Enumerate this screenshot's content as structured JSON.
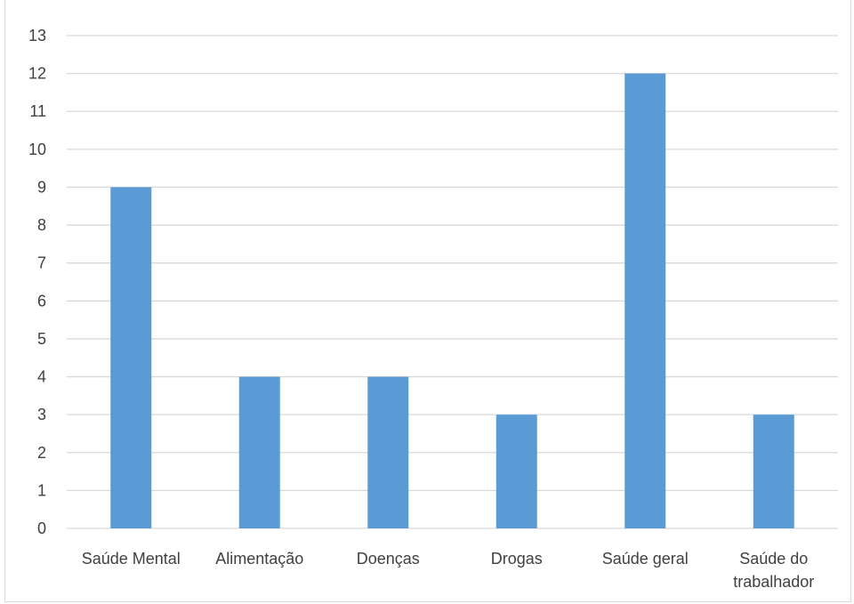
{
  "chart_data": {
    "type": "bar",
    "title": "",
    "xlabel": "",
    "ylabel": "",
    "categories": [
      [
        "Saúde Mental"
      ],
      [
        "Alimentação"
      ],
      [
        "Doenças"
      ],
      [
        "Drogas"
      ],
      [
        "Saúde geral"
      ],
      [
        "Saúde do",
        "trabalhador"
      ]
    ],
    "values": [
      9,
      4,
      4,
      3,
      12,
      3
    ],
    "ylim": [
      0,
      13
    ],
    "yticks": [
      0,
      1,
      2,
      3,
      4,
      5,
      6,
      7,
      8,
      9,
      10,
      11,
      12,
      13
    ],
    "grid": true,
    "legend": "none",
    "bar_color": "#5b9bd5",
    "grid_color": "#d9d9d9",
    "text_color": "#404040"
  }
}
